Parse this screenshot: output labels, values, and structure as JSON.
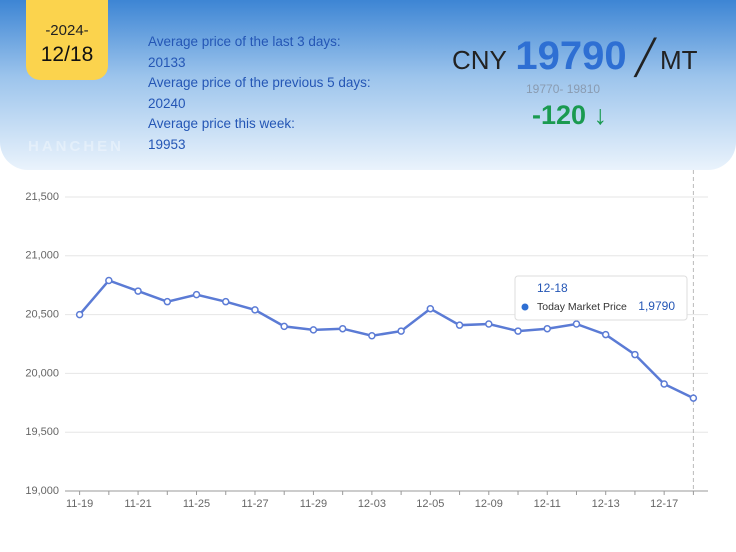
{
  "header": {
    "year": "-2024-",
    "date": "12/18",
    "stats": [
      {
        "label": "Average price of the last 3 days:",
        "value": "20133"
      },
      {
        "label": "Average price of the previous 5 days:",
        "value": "20240"
      },
      {
        "label": "Average price this week:",
        "value": "19953"
      }
    ],
    "currency": "CNY",
    "price": "19790",
    "unit": "MT",
    "range": "19770- 19810",
    "change": "-120"
  },
  "watermark": "HANCHEN",
  "chart_data": {
    "type": "line",
    "categories": [
      "11-19",
      null,
      "11-21",
      null,
      "11-25",
      null,
      "11-27",
      null,
      "11-29",
      null,
      "12-03",
      null,
      "12-05",
      null,
      "12-09",
      null,
      "12-11",
      null,
      "12-13",
      null,
      "12-17",
      null
    ],
    "series": [
      {
        "name": "Today Market Price",
        "color": "#5b7bd5",
        "values": [
          20500,
          20790,
          20700,
          20610,
          20670,
          20610,
          20540,
          20400,
          20370,
          20380,
          20320,
          20360,
          20550,
          20410,
          20420,
          20360,
          20380,
          20420,
          20330,
          20160,
          19910,
          19790
        ],
        "value_labels": [
          null,
          null,
          null,
          null,
          null,
          null,
          null,
          null,
          null,
          null,
          null,
          null,
          null,
          null,
          null,
          null,
          null,
          null,
          null,
          null,
          null,
          "1,9790"
        ]
      }
    ],
    "tooltip_title": "12-18",
    "ylim": [
      19000,
      21500
    ],
    "yticks": [
      {
        "value": 19000,
        "label": "19,000"
      },
      {
        "value": 19500,
        "label": "19,500"
      },
      {
        "value": 20000,
        "label": "20,000"
      },
      {
        "value": 20500,
        "label": "20,500"
      },
      {
        "value": 21000,
        "label": "21,000"
      },
      {
        "value": 21500,
        "label": "21,500"
      }
    ],
    "grid": true
  }
}
